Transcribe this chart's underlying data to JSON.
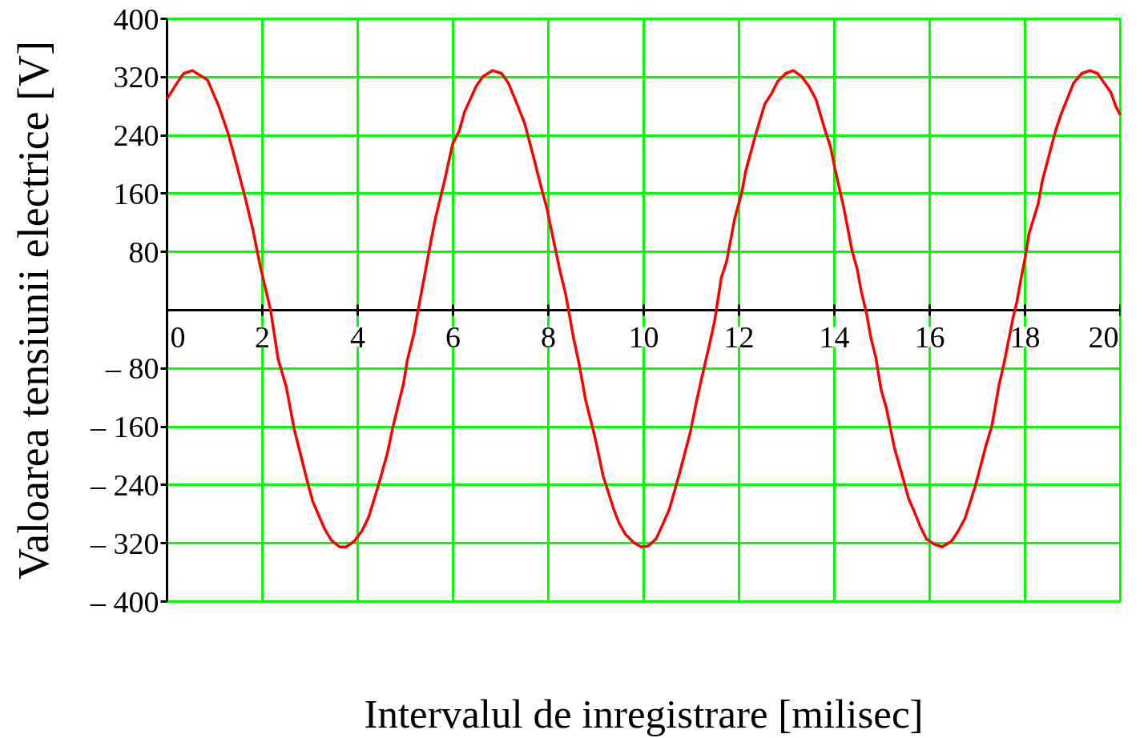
{
  "chart_data": {
    "type": "line",
    "xlabel": "Intervalul de inregistrare [milisec]",
    "ylabel": "Valoarea tensiunii electrice [V]",
    "x": [
      0,
      0.21,
      0.35,
      0.53,
      0.85,
      0.96,
      1.08,
      1.28,
      1.45,
      1.63,
      1.8,
      1.97,
      2.17,
      2.33,
      2.5,
      2.67,
      2.95,
      3.06,
      3.31,
      3.45,
      3.62,
      3.76,
      3.93,
      4.09,
      4.23,
      4.45,
      4.62,
      4.74,
      4.96,
      5.04,
      5.18,
      5.27,
      5.54,
      5.63,
      5.82,
      5.99,
      6.13,
      6.24,
      6.49,
      6.63,
      6.83,
      7.02,
      7.16,
      7.3,
      7.5,
      7.69,
      7.86,
      7.97,
      8.06,
      8.25,
      8.36,
      8.53,
      8.64,
      8.78,
      8.98,
      9.06,
      9.15,
      9.37,
      9.48,
      9.62,
      9.79,
      9.95,
      10.09,
      10.26,
      10.4,
      10.54,
      10.76,
      10.98,
      11.09,
      11.2,
      11.38,
      11.49,
      11.63,
      11.74,
      11.91,
      12.06,
      12.14,
      12.34,
      12.54,
      12.68,
      12.81,
      12.98,
      13.14,
      13.31,
      13.47,
      13.61,
      13.81,
      13.92,
      14.01,
      14.2,
      14.37,
      14.48,
      14.56,
      14.68,
      14.76,
      14.87,
      14.98,
      15.09,
      15.26,
      15.45,
      15.56,
      15.68,
      15.79,
      15.93,
      16.09,
      16.26,
      16.46,
      16.6,
      16.74,
      16.96,
      17.18,
      17.3,
      17.38,
      17.46,
      17.55,
      17.75,
      17.83,
      17.91,
      18.0,
      18.08,
      18.28,
      18.36,
      18.55,
      18.64,
      18.75,
      18.86,
      19.02,
      19.19,
      19.36,
      19.52,
      19.66,
      19.8,
      19.91,
      20
    ],
    "series": [
      {
        "color": "#ff0000",
        "values": [
          290,
          312,
          325,
          329,
          316,
          299,
          281,
          243,
          202,
          157,
          111,
          56,
          1,
          -67,
          -105,
          -164,
          -237,
          -263,
          -301,
          -316,
          -325,
          -325,
          -317,
          -303,
          -284,
          -237,
          -197,
          -160,
          -101,
          -69,
          -32,
          1,
          96,
          126,
          177,
          228,
          246,
          272,
          308,
          321,
          329,
          325,
          312,
          290,
          257,
          210,
          166,
          140,
          111,
          52,
          23,
          -39,
          -72,
          -123,
          -175,
          -200,
          -228,
          -273,
          -292,
          -308,
          -319,
          -325,
          -324,
          -314,
          -294,
          -273,
          -222,
          -167,
          -131,
          -98,
          -47,
          -14,
          45,
          67,
          126,
          162,
          191,
          239,
          283,
          297,
          314,
          325,
          329,
          321,
          307,
          290,
          246,
          224,
          195,
          140,
          82,
          56,
          27,
          -6,
          -36,
          -65,
          -109,
          -134,
          -189,
          -233,
          -259,
          -277,
          -295,
          -314,
          -321,
          -325,
          -317,
          -303,
          -286,
          -241,
          -186,
          -160,
          -131,
          -101,
          -76,
          -10,
          12,
          41,
          71,
          104,
          147,
          177,
          224,
          246,
          268,
          286,
          312,
          325,
          329,
          325,
          312,
          299,
          279,
          268
        ]
      }
    ],
    "xlim": [
      0,
      20
    ],
    "ylim": [
      -400,
      400
    ],
    "xticks": [
      0,
      2,
      4,
      6,
      8,
      10,
      12,
      14,
      16,
      18,
      20
    ],
    "yticks": [
      {
        "value": -400,
        "label": "– 400"
      },
      {
        "value": -320,
        "label": "– 320"
      },
      {
        "value": -240,
        "label": "– 240"
      },
      {
        "value": -160,
        "label": "– 160"
      },
      {
        "value": -80,
        "label": "– 80"
      },
      80,
      160,
      240,
      320,
      400
    ],
    "grid": true
  }
}
